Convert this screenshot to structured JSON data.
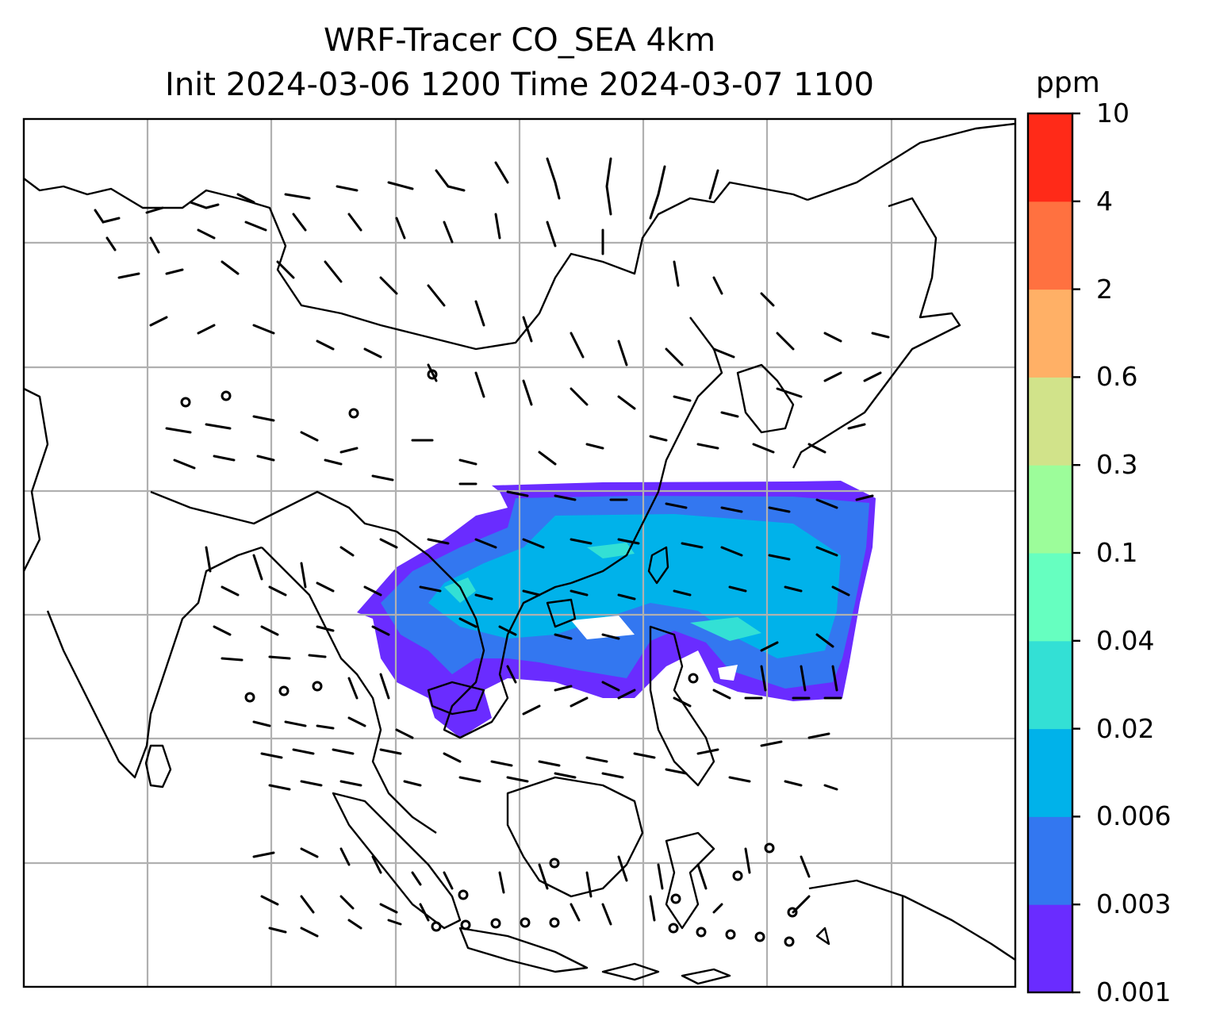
{
  "title_line1": "WRF-Tracer CO_SEA 4km",
  "title_line2": "Init 2024-03-06 1200 Time 2024-03-07 1100",
  "colorbar": {
    "unit": "ppm",
    "levels": [
      "0.001",
      "0.003",
      "0.006",
      "0.02",
      "0.04",
      "0.1",
      "0.3",
      "0.6",
      "2",
      "4",
      "10"
    ],
    "colors": [
      "#6a2cff",
      "#3377f0",
      "#00b2ea",
      "#33e0d5",
      "#66ffc0",
      "#9cfd9a",
      "#d1e38a",
      "#ffb066",
      "#ff7140",
      "#ff2a18"
    ]
  },
  "map": {
    "gridlines": true,
    "field_colors": {
      "low": "#6a2cff",
      "mid": "#3377f0",
      "high": "#00b2ea",
      "peak": "#33e0d5"
    }
  }
}
